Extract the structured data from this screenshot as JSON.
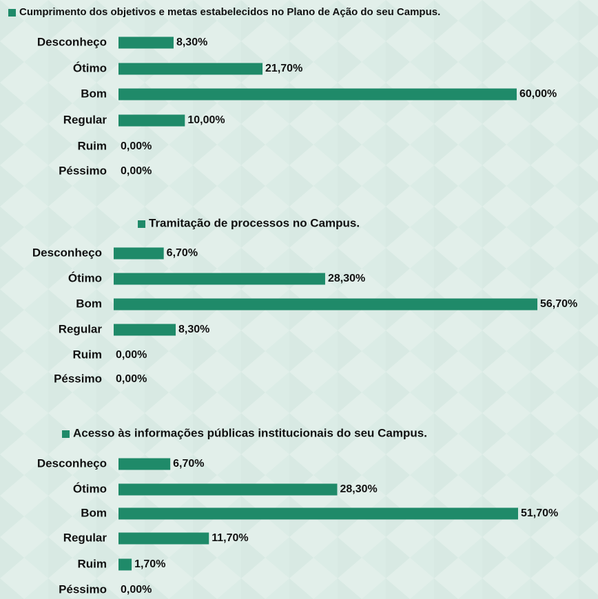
{
  "chart_data": [
    {
      "type": "bar",
      "title": "Cumprimento dos objetivos e metas estabelecidos no Plano de Ação do seu Campus.",
      "categories": [
        "Desconheço",
        "Ótimo",
        "Bom",
        "Regular",
        "Ruim",
        "Péssimo"
      ],
      "values": [
        8.3,
        21.7,
        60.0,
        10.0,
        0.0,
        0.0
      ],
      "value_labels": [
        "8,30%",
        "21,70%",
        "60,00%",
        "10,00%",
        "0,00%",
        "0,00%"
      ],
      "color": "#1f8a69"
    },
    {
      "type": "bar",
      "title": "Tramitação de processos no Campus.",
      "categories": [
        "Desconheço",
        "Ótimo",
        "Bom",
        "Regular",
        "Ruim",
        "Péssimo"
      ],
      "values": [
        6.7,
        28.3,
        56.7,
        8.3,
        0.0,
        0.0
      ],
      "value_labels": [
        "6,70%",
        "28,30%",
        "56,70%",
        "8,30%",
        "0,00%",
        "0,00%"
      ],
      "color": "#1f8a69"
    },
    {
      "type": "bar",
      "title": "Acesso às informações públicas institucionais do seu Campus.",
      "categories": [
        "Desconheço",
        "Ótimo",
        "Bom",
        "Regular",
        "Ruim",
        "Péssimo"
      ],
      "values": [
        6.7,
        28.3,
        51.7,
        11.7,
        1.7,
        0.0
      ],
      "value_labels": [
        "6,70%",
        "28,30%",
        "51,70%",
        "11,70%",
        "1,70%",
        "0,00%"
      ],
      "color": "#1f8a69"
    }
  ]
}
